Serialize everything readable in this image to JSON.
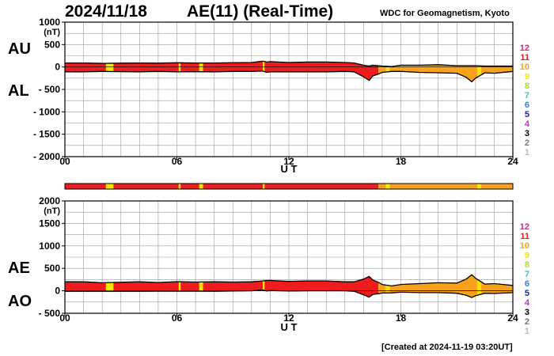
{
  "header": {
    "date": "2024/11/18",
    "title": "AE(11) (Real-Time)",
    "source": "WDC for Geomagnetism, Kyoto"
  },
  "footer": {
    "created": "[Created at 2024-11-19 03:20UT]"
  },
  "panels_labels": {
    "top_upper": "AU",
    "top_lower": "AL",
    "bottom_upper": "AE",
    "bottom_lower": "AO"
  },
  "legend": {
    "items": [
      {
        "label": "12",
        "color": "#e0208a"
      },
      {
        "label": "11",
        "color": "#ee1c1c"
      },
      {
        "label": "10",
        "color": "#f7a21a"
      },
      {
        "label": "9",
        "color": "#f3e600"
      },
      {
        "label": "8",
        "color": "#a8e020"
      },
      {
        "label": "7",
        "color": "#20d0d0"
      },
      {
        "label": "6",
        "color": "#2a7de0"
      },
      {
        "label": "5",
        "color": "#1e1eb0"
      },
      {
        "label": "4",
        "color": "#c030d0"
      },
      {
        "label": "3",
        "color": "#000000"
      },
      {
        "label": "2",
        "color": "#777777"
      },
      {
        "label": "1",
        "color": "#bbbbbb"
      }
    ]
  },
  "chart_data": [
    {
      "type": "area",
      "xlabel": "U T",
      "ylabel": "(nT)",
      "xlim": [
        0,
        24
      ],
      "ylim": [
        -2000,
        1000
      ],
      "xticks": [
        0,
        6,
        12,
        18,
        24
      ],
      "xtick_labels": [
        "00",
        "06",
        "12",
        "18",
        "24"
      ],
      "yticks": [
        1000,
        500,
        0,
        -500,
        -1000,
        -1500,
        -2000
      ],
      "ytick_labels": [
        "1000",
        "500",
        "0",
        "- 500",
        "- 1000",
        "- 1500",
        "- 2000"
      ],
      "grid": true,
      "series": [
        {
          "name": "AU",
          "x": [
            0,
            1,
            2,
            3,
            4,
            5,
            6,
            7,
            8,
            9,
            10,
            10.6,
            10.8,
            11,
            12,
            13,
            14,
            15,
            15.5,
            16,
            16.3,
            16.5,
            16.8,
            17,
            17.5,
            18,
            19,
            20,
            21,
            21.5,
            21.8,
            22,
            22.5,
            23,
            24
          ],
          "values": [
            90,
            90,
            80,
            85,
            90,
            85,
            95,
            90,
            90,
            95,
            100,
            130,
            110,
            120,
            100,
            110,
            110,
            100,
            90,
            40,
            20,
            40,
            30,
            20,
            10,
            40,
            40,
            50,
            30,
            30,
            30,
            30,
            20,
            20,
            20
          ]
        },
        {
          "name": "AL",
          "x": [
            0,
            1,
            2,
            3,
            4,
            5,
            6,
            7,
            8,
            9,
            10,
            10.6,
            10.8,
            11,
            12,
            13,
            14,
            15,
            15.5,
            16,
            16.3,
            16.5,
            16.8,
            17,
            17.5,
            18,
            19,
            20,
            21,
            21.5,
            21.8,
            22,
            22.5,
            23,
            24
          ],
          "values": [
            -110,
            -110,
            -100,
            -105,
            -110,
            -100,
            -110,
            -105,
            -110,
            -100,
            -100,
            -90,
            -120,
            -110,
            -110,
            -110,
            -110,
            -100,
            -110,
            -220,
            -300,
            -200,
            -160,
            -120,
            -100,
            -100,
            -120,
            -130,
            -140,
            -230,
            -330,
            -250,
            -130,
            -140,
            -100
          ]
        }
      ],
      "activity_bar": [
        {
          "start": 0,
          "end": 2.2,
          "level": 11
        },
        {
          "start": 2.2,
          "end": 2.6,
          "level": 9
        },
        {
          "start": 2.6,
          "end": 6.1,
          "level": 11
        },
        {
          "start": 6.1,
          "end": 6.2,
          "level": 9
        },
        {
          "start": 6.2,
          "end": 7.2,
          "level": 11
        },
        {
          "start": 7.2,
          "end": 7.4,
          "level": 9
        },
        {
          "start": 7.4,
          "end": 10.6,
          "level": 11
        },
        {
          "start": 10.6,
          "end": 10.7,
          "level": 9
        },
        {
          "start": 10.7,
          "end": 16.8,
          "level": 11
        },
        {
          "start": 16.8,
          "end": 17.2,
          "level": 10
        },
        {
          "start": 17.2,
          "end": 17.4,
          "level": 9
        },
        {
          "start": 17.4,
          "end": 22.1,
          "level": 10
        },
        {
          "start": 22.1,
          "end": 22.3,
          "level": 9
        },
        {
          "start": 22.3,
          "end": 24,
          "level": 10
        }
      ]
    },
    {
      "type": "area",
      "xlabel": "U T",
      "ylabel": "(nT)",
      "xlim": [
        0,
        24
      ],
      "ylim": [
        -500,
        2000
      ],
      "xticks": [
        0,
        6,
        12,
        18,
        24
      ],
      "xtick_labels": [
        "00",
        "06",
        "12",
        "18",
        "24"
      ],
      "yticks": [
        2000,
        1500,
        1000,
        500,
        0,
        -500
      ],
      "ytick_labels": [
        "2000",
        "1500",
        "1000",
        "500",
        "0",
        "- 500"
      ],
      "grid": true,
      "series": [
        {
          "name": "AE",
          "x": [
            0,
            1,
            2,
            3,
            4,
            5,
            6,
            7,
            8,
            9,
            10,
            10.6,
            10.8,
            11,
            12,
            13,
            14,
            15,
            15.5,
            16,
            16.3,
            16.5,
            16.8,
            17,
            17.5,
            18,
            19,
            20,
            21,
            21.5,
            21.8,
            22,
            22.5,
            23,
            24
          ],
          "values": [
            200,
            200,
            180,
            190,
            200,
            185,
            205,
            195,
            200,
            195,
            200,
            220,
            230,
            230,
            210,
            220,
            220,
            200,
            200,
            260,
            320,
            240,
            190,
            140,
            110,
            140,
            160,
            180,
            170,
            260,
            360,
            280,
            150,
            160,
            120
          ]
        },
        {
          "name": "AO",
          "x": [
            0,
            1,
            2,
            3,
            4,
            5,
            6,
            7,
            8,
            9,
            10,
            10.6,
            10.8,
            11,
            12,
            13,
            14,
            15,
            15.5,
            16,
            16.3,
            16.5,
            16.8,
            17,
            17.5,
            18,
            19,
            20,
            21,
            21.5,
            21.8,
            22,
            22.5,
            23,
            24
          ],
          "values": [
            -10,
            -10,
            -10,
            -10,
            -10,
            -8,
            -8,
            -8,
            -10,
            -3,
            0,
            20,
            -5,
            5,
            -5,
            0,
            0,
            0,
            -10,
            -90,
            -140,
            -80,
            -65,
            -50,
            -45,
            -30,
            -40,
            -40,
            -55,
            -100,
            -150,
            -110,
            -55,
            -60,
            -40
          ]
        }
      ],
      "activity_bar": [
        {
          "start": 0,
          "end": 2.2,
          "level": 11
        },
        {
          "start": 2.2,
          "end": 2.6,
          "level": 9
        },
        {
          "start": 2.6,
          "end": 6.1,
          "level": 11
        },
        {
          "start": 6.1,
          "end": 6.2,
          "level": 9
        },
        {
          "start": 6.2,
          "end": 7.2,
          "level": 11
        },
        {
          "start": 7.2,
          "end": 7.4,
          "level": 9
        },
        {
          "start": 7.4,
          "end": 10.6,
          "level": 11
        },
        {
          "start": 10.6,
          "end": 10.7,
          "level": 9
        },
        {
          "start": 10.7,
          "end": 16.8,
          "level": 11
        },
        {
          "start": 16.8,
          "end": 17.2,
          "level": 10
        },
        {
          "start": 17.2,
          "end": 17.4,
          "level": 9
        },
        {
          "start": 17.4,
          "end": 22.1,
          "level": 10
        },
        {
          "start": 22.1,
          "end": 22.3,
          "level": 9
        },
        {
          "start": 22.3,
          "end": 24,
          "level": 10
        }
      ]
    }
  ]
}
